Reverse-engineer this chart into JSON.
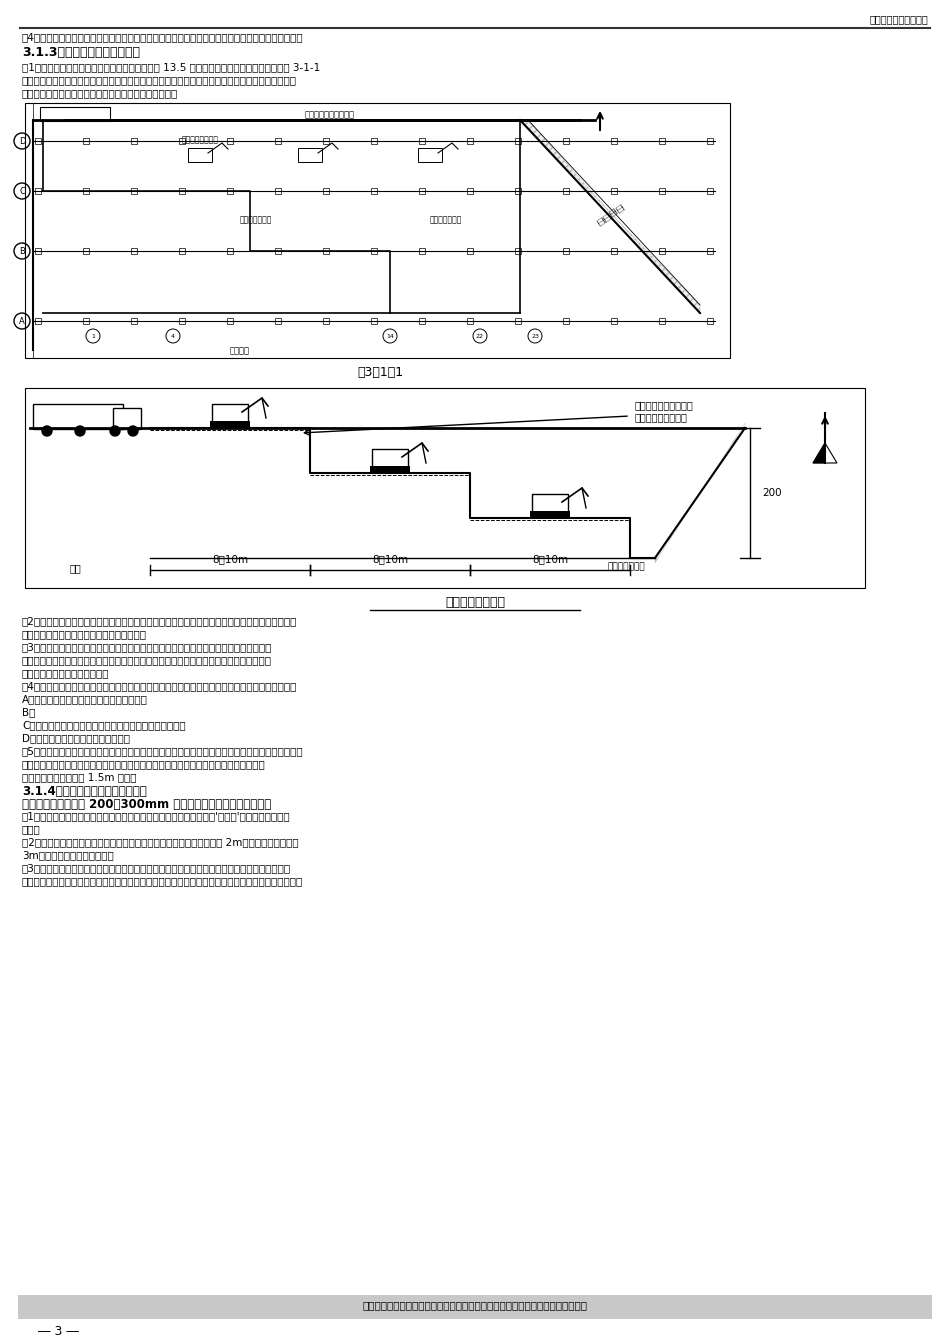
{
  "page_title": "喷锚支护施工工艺流程",
  "page_number": "3",
  "bg_color": "#ffffff",
  "header_text_right": "喷锚支护施工工艺流程",
  "section_title": "3.1.3机械挖方的要求及方法：",
  "intro_line1": "（4）做好测量蒙据，设置区域掌握网，并做好轴线桩的测量及校核。同时进展场地标高的测量工作。",
  "intro_line2": "（1）本工程属于深基坑开挖，挖土深度最深可达 13.5 米，由于基坑面积较大，原则上按图 3-1-1",
  "intro_line3": "所示先挖坡道，以便运土汽车到坑内运土，但对于取口或者因遇地下水而使汽车进入基坑内困难时，",
  "intro_line4": "则承受合阶接力循环开挖的方法进展开挖（见下页图）。",
  "fig_label": "图3－1－1",
  "second_diagram_title": "深基坑开挖示意图",
  "diagram2_labels": {
    "top_right1": "深基坑分步开方向分别",
    "top_right2": "分台阶循环接力开挖",
    "bottom_left": "基底",
    "bottom_right": "机械开挖控制线",
    "dim1": "8～10m",
    "dim2": "8～10m",
    "dim3": "8～10m",
    "dim4": "200"
  },
  "body_paragraphs": [
    "（2）协作机械作业的清底、平坦、修坡等人员，须在机械回转半径以外工作。当必需在回转半径以",
    "内工作时，须使机械回转制动后，方可作业。",
    "（3）工序转换以及下一道工序中，发现掩藏物或辨识不清的物品，须马上停顿作业，设专",
    "人看护并立刻向施工负责人报告，弄清楚无误前方可进展连续开挖，机械开挖中，严格掌握",
    "挖土的轴线、标高，盲禁超挖。",
    "（4）在施工中遇以下状况之一，须立即停工，待实行措施并符合作业安全条件后，方可连续施工：",
    "A、挖掘机支体不平稳，有发生翻倒危急时；",
    "B、",
    "C、地面涌水管涌，有发生坑车或因雨天发生坡道打滑时；",
    "D、挖土机不、防护设施损失失效时；",
    "（5）承受自然放出出基坑开挖线。开挖时须先边后内，先远后近，上口白灰线挖留各半，先挖上层，",
    "后挖下层，交替超前，每层保持一个梯形工作面，直至基坑底标高处。所挖出的土方全部",
    "运挖土方，堆放于坑顶 1.5m 以外。",
    "3.1.4人工挖土方的方法及安全措施",
    "机挖完土方后，预留 200～300mm 进展人工清底，以免扰动基层。",
    "（1）挖掘土方时，必需由上往下进展，制止承受掏洞、挖空坑底和挖'仲悬土'的方法，防止塌方",
    "事故。",
    "（2）多人同时挖土操作时，须保持足够的安全距离，横向间距不得小于 2m，纵向间距不得小于",
    "3m。制止面对同进展挖掘作业",
    "（3）用机械挖土时，制止带手套，以免工具脱手伤人，挖掘土方作业中，如遇有电缆、管道、地",
    "下埋藏物或变识不清的物品，须马上停顿作业，设专人在护并马上向施工负责人报告。严禁随便磁击，"
  ],
  "footer_text": "－科学治理奉献精品，遵章守法致力环保；预防为主确保安全，追求满足持续改进",
  "fig1_labels": {
    "top_label": "施工工程施工整施动线",
    "truck_label": "地上汽车运出路线",
    "left_label": "顺坡开挖蒸煮机",
    "right_label": "松压开挖蒸煮机",
    "road_label": "临时道路"
  }
}
